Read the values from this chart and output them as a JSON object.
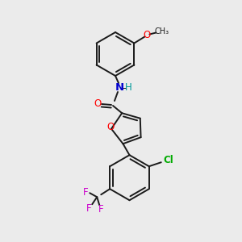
{
  "background_color": "#ebebeb",
  "atom_colors": {
    "O": "#ff0000",
    "N": "#0000cd",
    "Cl": "#00aa00",
    "F": "#cc00cc",
    "H_on_N": "#009999",
    "C": "#1a1a1a"
  }
}
